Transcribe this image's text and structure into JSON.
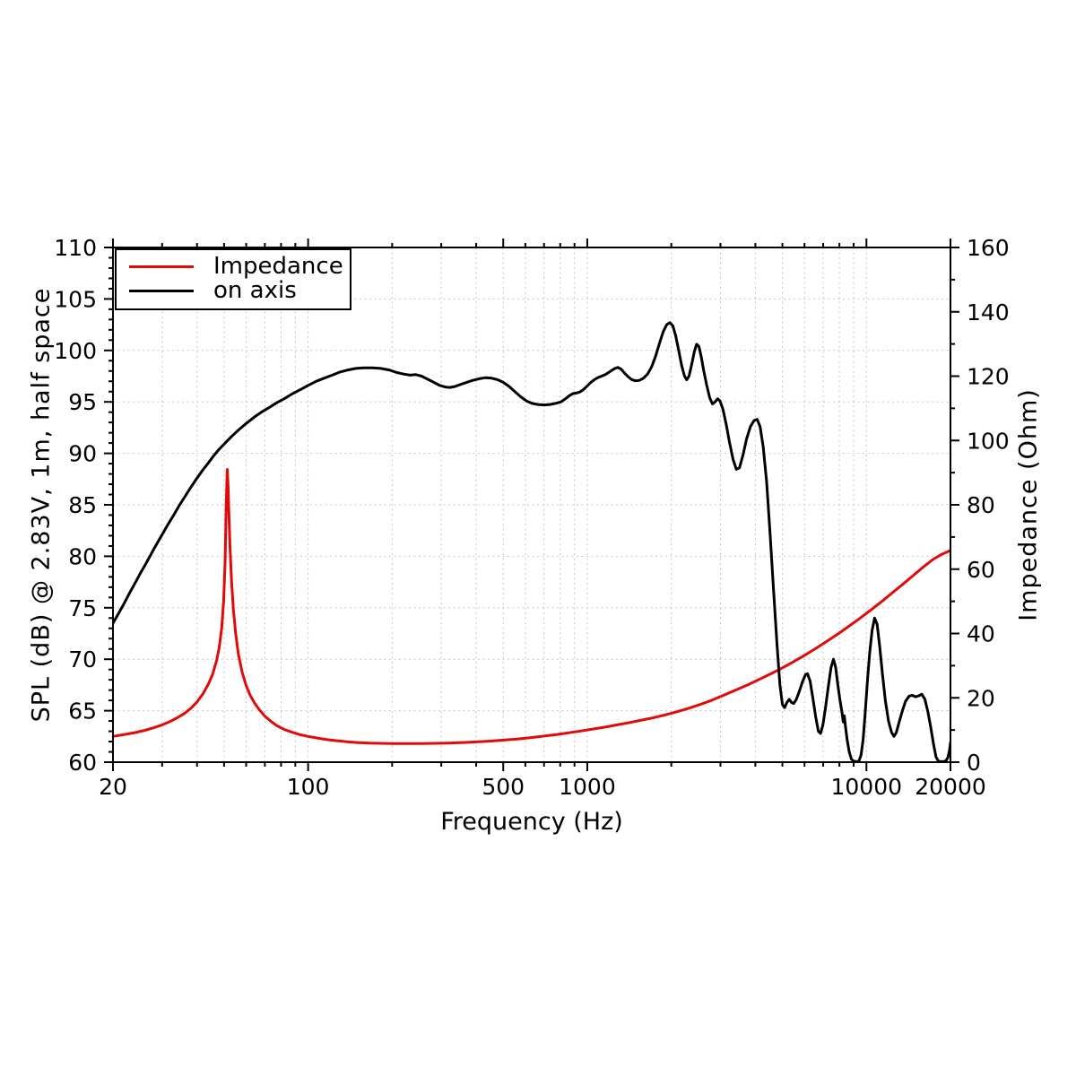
{
  "page": {
    "background": "#ffffff",
    "grid_color": "#c6c6c6",
    "axis_color": "#000000"
  },
  "legend": {
    "items": [
      {
        "label": "Impedance",
        "color": "#e10a0a"
      },
      {
        "label": "on axis",
        "color": "#000000"
      }
    ]
  },
  "chart_data": {
    "type": "line",
    "title": "",
    "xlabel": "Frequency (Hz)",
    "ylabel_left": "SPL (dB) @ 2.83V, 1m, half space",
    "ylabel_right": "Impedance (Ohm)",
    "x_scale": "log",
    "x_range": [
      20,
      20000
    ],
    "y_left_range": [
      60,
      110
    ],
    "y_right_range": [
      0,
      160
    ],
    "x_tick_labels": [
      20,
      100,
      500,
      1000,
      10000,
      20000
    ],
    "y_left_ticks": [
      60,
      65,
      70,
      75,
      80,
      85,
      90,
      95,
      100,
      105,
      110
    ],
    "y_right_ticks": [
      0,
      20,
      40,
      60,
      80,
      100,
      120,
      140,
      160
    ],
    "y_left_minor_step": 1,
    "y_right_minor_step": 10,
    "grid": "dashed, all log minors vertical + 5 dB horizontal",
    "legend_position": "top-left",
    "series": [
      {
        "name": "Impedance",
        "axis": "right",
        "color": "#e10a0a",
        "unit": "Ohm",
        "points": [
          [
            20,
            8.0
          ],
          [
            22,
            8.6
          ],
          [
            24,
            9.2
          ],
          [
            26,
            9.9
          ],
          [
            28,
            10.7
          ],
          [
            30,
            11.6
          ],
          [
            32,
            12.6
          ],
          [
            34,
            13.8
          ],
          [
            36,
            15.1
          ],
          [
            38,
            16.7
          ],
          [
            40,
            18.7
          ],
          [
            42,
            21.2
          ],
          [
            44,
            24.4
          ],
          [
            45.5,
            27.3
          ],
          [
            47,
            31.5
          ],
          [
            48,
            35.5
          ],
          [
            49,
            41.5
          ],
          [
            49.8,
            50
          ],
          [
            50.4,
            62
          ],
          [
            50.9,
            80
          ],
          [
            51.3,
            91
          ],
          [
            51.7,
            86
          ],
          [
            52,
            78
          ],
          [
            52.5,
            67
          ],
          [
            53.2,
            56
          ],
          [
            54,
            47.5
          ],
          [
            55,
            40
          ],
          [
            56.3,
            33.5
          ],
          [
            58,
            28
          ],
          [
            60,
            23.8
          ],
          [
            62,
            20.8
          ],
          [
            64.5,
            18.2
          ],
          [
            67,
            16.2
          ],
          [
            70,
            14.3
          ],
          [
            73.5,
            12.7
          ],
          [
            77.5,
            11.3
          ],
          [
            82,
            10.2
          ],
          [
            87,
            9.4
          ],
          [
            93,
            8.6
          ],
          [
            100,
            8.0
          ],
          [
            108,
            7.5
          ],
          [
            117,
            7.0
          ],
          [
            127,
            6.65
          ],
          [
            138,
            6.35
          ],
          [
            150,
            6.1
          ],
          [
            165,
            5.95
          ],
          [
            182,
            5.85
          ],
          [
            200,
            5.8
          ],
          [
            225,
            5.78
          ],
          [
            252,
            5.8
          ],
          [
            285,
            5.85
          ],
          [
            320,
            5.95
          ],
          [
            360,
            6.1
          ],
          [
            400,
            6.3
          ],
          [
            450,
            6.55
          ],
          [
            500,
            6.85
          ],
          [
            560,
            7.2
          ],
          [
            630,
            7.65
          ],
          [
            700,
            8.1
          ],
          [
            780,
            8.6
          ],
          [
            860,
            9.15
          ],
          [
            950,
            9.7
          ],
          [
            1050,
            10.3
          ],
          [
            1160,
            10.9
          ],
          [
            1280,
            11.6
          ],
          [
            1400,
            12.2
          ],
          [
            1550,
            13.0
          ],
          [
            1700,
            13.7
          ],
          [
            1900,
            14.7
          ],
          [
            2100,
            15.7
          ],
          [
            2300,
            16.7
          ],
          [
            2550,
            18.0
          ],
          [
            2800,
            19.3
          ],
          [
            3100,
            20.9
          ],
          [
            3400,
            22.4
          ],
          [
            3750,
            24.0
          ],
          [
            4100,
            25.6
          ],
          [
            4500,
            27.3
          ],
          [
            4950,
            29.1
          ],
          [
            5450,
            31.1
          ],
          [
            6000,
            33.2
          ],
          [
            6600,
            35.4
          ],
          [
            7250,
            37.7
          ],
          [
            7950,
            40.0
          ],
          [
            8700,
            42.4
          ],
          [
            9500,
            44.8
          ],
          [
            10400,
            47.4
          ],
          [
            11400,
            50.1
          ],
          [
            12400,
            52.7
          ],
          [
            13500,
            55.3
          ],
          [
            14700,
            58.0
          ],
          [
            16000,
            60.7
          ],
          [
            17300,
            63.0
          ],
          [
            18600,
            64.6
          ],
          [
            20000,
            65.8
          ]
        ]
      },
      {
        "name": "on axis",
        "axis": "left",
        "color": "#000000",
        "unit": "dB",
        "points": [
          [
            20,
            73.5
          ],
          [
            21,
            74.5
          ],
          [
            22,
            75.5
          ],
          [
            23,
            76.5
          ],
          [
            24,
            77.4
          ],
          [
            25,
            78.3
          ],
          [
            26,
            79.1
          ],
          [
            27,
            79.9
          ],
          [
            28,
            80.7
          ],
          [
            29,
            81.4
          ],
          [
            30,
            82.1
          ],
          [
            31.5,
            83.1
          ],
          [
            33,
            84.0
          ],
          [
            34.5,
            84.9
          ],
          [
            36,
            85.7
          ],
          [
            38,
            86.7
          ],
          [
            40,
            87.6
          ],
          [
            42,
            88.4
          ],
          [
            44,
            89.1
          ],
          [
            46,
            89.8
          ],
          [
            48,
            90.4
          ],
          [
            50,
            90.9
          ],
          [
            53,
            91.6
          ],
          [
            56,
            92.2
          ],
          [
            60,
            92.9
          ],
          [
            64,
            93.5
          ],
          [
            68,
            94.0
          ],
          [
            72,
            94.4
          ],
          [
            77,
            94.9
          ],
          [
            82,
            95.3
          ],
          [
            88,
            95.8
          ],
          [
            94,
            96.2
          ],
          [
            100,
            96.6
          ],
          [
            107,
            97.0
          ],
          [
            114,
            97.3
          ],
          [
            122,
            97.6
          ],
          [
            130,
            97.9
          ],
          [
            139,
            98.1
          ],
          [
            148,
            98.25
          ],
          [
            158,
            98.3
          ],
          [
            170,
            98.3
          ],
          [
            182,
            98.25
          ],
          [
            195,
            98.1
          ],
          [
            208,
            97.85
          ],
          [
            220,
            97.7
          ],
          [
            232,
            97.6
          ],
          [
            243,
            97.65
          ],
          [
            255,
            97.5
          ],
          [
            268,
            97.2
          ],
          [
            282,
            96.9
          ],
          [
            296,
            96.6
          ],
          [
            310,
            96.45
          ],
          [
            322,
            96.4
          ],
          [
            336,
            96.5
          ],
          [
            352,
            96.7
          ],
          [
            370,
            96.9
          ],
          [
            390,
            97.1
          ],
          [
            410,
            97.25
          ],
          [
            432,
            97.35
          ],
          [
            455,
            97.3
          ],
          [
            478,
            97.15
          ],
          [
            500,
            96.9
          ],
          [
            525,
            96.5
          ],
          [
            550,
            96.0
          ],
          [
            578,
            95.5
          ],
          [
            605,
            95.1
          ],
          [
            635,
            94.85
          ],
          [
            665,
            94.75
          ],
          [
            700,
            94.7
          ],
          [
            735,
            94.75
          ],
          [
            770,
            94.85
          ],
          [
            805,
            95.0
          ],
          [
            835,
            95.3
          ],
          [
            862,
            95.6
          ],
          [
            888,
            95.8
          ],
          [
            912,
            95.85
          ],
          [
            938,
            95.95
          ],
          [
            965,
            96.15
          ],
          [
            1000,
            96.55
          ],
          [
            1030,
            96.9
          ],
          [
            1060,
            97.15
          ],
          [
            1090,
            97.35
          ],
          [
            1125,
            97.5
          ],
          [
            1160,
            97.65
          ],
          [
            1200,
            97.9
          ],
          [
            1245,
            98.2
          ],
          [
            1285,
            98.35
          ],
          [
            1320,
            98.2
          ],
          [
            1360,
            97.8
          ],
          [
            1400,
            97.45
          ],
          [
            1445,
            97.15
          ],
          [
            1490,
            97.05
          ],
          [
            1540,
            97.1
          ],
          [
            1590,
            97.3
          ],
          [
            1645,
            97.7
          ],
          [
            1700,
            98.4
          ],
          [
            1755,
            99.4
          ],
          [
            1815,
            100.7
          ],
          [
            1870,
            101.8
          ],
          [
            1925,
            102.5
          ],
          [
            1975,
            102.7
          ],
          [
            2025,
            102.4
          ],
          [
            2075,
            101.4
          ],
          [
            2125,
            100.0
          ],
          [
            2180,
            98.5
          ],
          [
            2230,
            97.5
          ],
          [
            2270,
            97.15
          ],
          [
            2315,
            97.5
          ],
          [
            2365,
            98.6
          ],
          [
            2420,
            99.9
          ],
          [
            2465,
            100.6
          ],
          [
            2510,
            100.4
          ],
          [
            2560,
            99.4
          ],
          [
            2615,
            98.0
          ],
          [
            2680,
            96.6
          ],
          [
            2745,
            95.4
          ],
          [
            2810,
            94.8
          ],
          [
            2870,
            95.0
          ],
          [
            2930,
            95.3
          ],
          [
            2990,
            95.1
          ],
          [
            3060,
            94.3
          ],
          [
            3140,
            92.9
          ],
          [
            3230,
            91.1
          ],
          [
            3330,
            89.4
          ],
          [
            3420,
            88.45
          ],
          [
            3510,
            88.6
          ],
          [
            3610,
            89.8
          ],
          [
            3720,
            91.4
          ],
          [
            3840,
            92.6
          ],
          [
            3960,
            93.2
          ],
          [
            4060,
            93.3
          ],
          [
            4160,
            92.6
          ],
          [
            4270,
            90.6
          ],
          [
            4390,
            87.2
          ],
          [
            4510,
            82.5
          ],
          [
            4640,
            77.0
          ],
          [
            4780,
            71.5
          ],
          [
            4900,
            67.5
          ],
          [
            5000,
            65.6
          ],
          [
            5090,
            65.3
          ],
          [
            5190,
            65.8
          ],
          [
            5290,
            66.1
          ],
          [
            5390,
            65.8
          ],
          [
            5490,
            65.7
          ],
          [
            5610,
            66.1
          ],
          [
            5750,
            66.9
          ],
          [
            5900,
            67.8
          ],
          [
            6050,
            68.5
          ],
          [
            6150,
            68.6
          ],
          [
            6280,
            67.9
          ],
          [
            6420,
            66.3
          ],
          [
            6580,
            64.4
          ],
          [
            6730,
            63.0
          ],
          [
            6850,
            62.8
          ],
          [
            6980,
            63.6
          ],
          [
            7130,
            65.2
          ],
          [
            7300,
            67.3
          ],
          [
            7470,
            69.2
          ],
          [
            7620,
            70.0
          ],
          [
            7760,
            69.2
          ],
          [
            7900,
            67.5
          ],
          [
            8050,
            65.9
          ],
          [
            8180,
            64.8
          ],
          [
            8260,
            63.9
          ],
          [
            8330,
            64.5
          ],
          [
            8420,
            63.4
          ],
          [
            8540,
            62.1
          ],
          [
            8680,
            61.0
          ],
          [
            8830,
            60.3
          ],
          [
            9000,
            60.1
          ],
          [
            9200,
            60.05
          ],
          [
            9400,
            60.1
          ],
          [
            9570,
            60.7
          ],
          [
            9730,
            62.2
          ],
          [
            9900,
            64.8
          ],
          [
            10080,
            67.9
          ],
          [
            10280,
            70.7
          ],
          [
            10480,
            72.8
          ],
          [
            10700,
            74.0
          ],
          [
            10920,
            73.4
          ],
          [
            11150,
            71.3
          ],
          [
            11420,
            68.5
          ],
          [
            11700,
            65.9
          ],
          [
            12000,
            64.0
          ],
          [
            12300,
            62.9
          ],
          [
            12550,
            62.5
          ],
          [
            12800,
            62.9
          ],
          [
            13100,
            63.9
          ],
          [
            13450,
            65.0
          ],
          [
            13800,
            65.9
          ],
          [
            14200,
            66.4
          ],
          [
            14600,
            66.5
          ],
          [
            15000,
            66.35
          ],
          [
            15400,
            66.45
          ],
          [
            15800,
            66.6
          ],
          [
            16200,
            66.1
          ],
          [
            16600,
            64.9
          ],
          [
            17000,
            63.4
          ],
          [
            17400,
            61.7
          ],
          [
            17750,
            60.5
          ],
          [
            18100,
            60.1
          ],
          [
            18500,
            60.05
          ],
          [
            18900,
            60.05
          ],
          [
            19300,
            60.15
          ],
          [
            19600,
            60.5
          ],
          [
            19850,
            61.2
          ],
          [
            20000,
            61.9
          ]
        ]
      }
    ]
  }
}
